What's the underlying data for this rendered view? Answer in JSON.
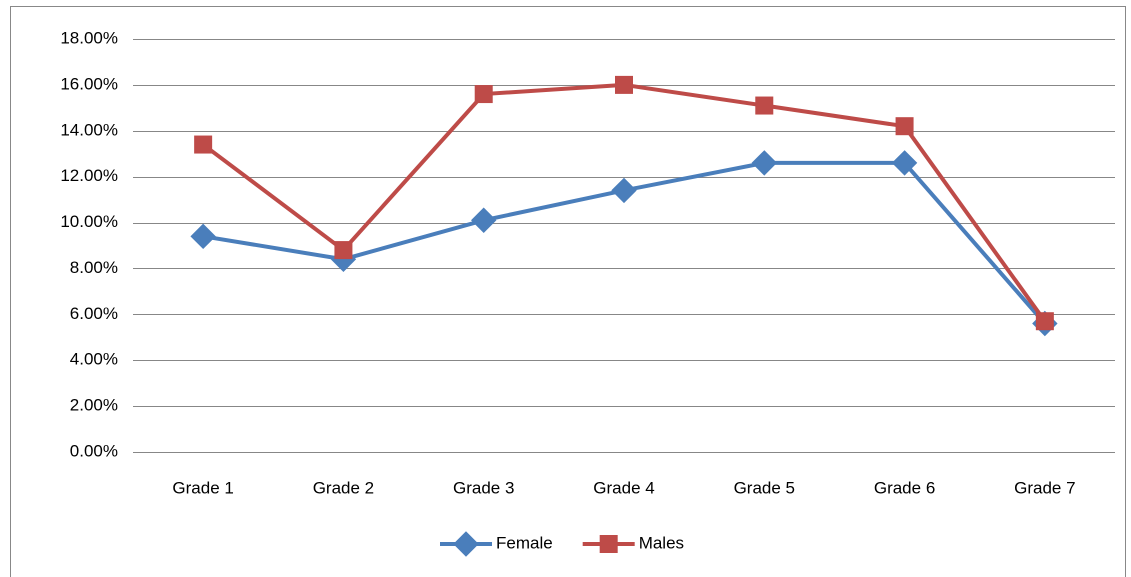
{
  "chart_data": {
    "type": "line",
    "categories": [
      "Grade 1",
      "Grade 2",
      "Grade 3",
      "Grade 4",
      "Grade 5",
      "Grade 6",
      "Grade 7"
    ],
    "series": [
      {
        "name": "Female",
        "color": "#4a7ebb",
        "marker": "diamond",
        "values": [
          9.4,
          8.4,
          10.1,
          11.4,
          12.6,
          12.6,
          5.6
        ]
      },
      {
        "name": "Males",
        "color": "#be4b48",
        "marker": "square",
        "values": [
          13.4,
          8.8,
          15.6,
          16.0,
          15.1,
          14.2,
          5.7
        ]
      }
    ],
    "ylim": [
      0,
      18
    ],
    "yticks": [
      {
        "value": 0,
        "label": "0.00%"
      },
      {
        "value": 2,
        "label": "2.00%"
      },
      {
        "value": 4,
        "label": "4.00%"
      },
      {
        "value": 6,
        "label": "6.00%"
      },
      {
        "value": 8,
        "label": "8.00%"
      },
      {
        "value": 10,
        "label": "10.00%"
      },
      {
        "value": 12,
        "label": "12.00%"
      },
      {
        "value": 14,
        "label": "14.00%"
      },
      {
        "value": 16,
        "label": "16.00%"
      },
      {
        "value": 18,
        "label": "18.00%"
      }
    ],
    "grid": true,
    "legend": "bottom"
  }
}
